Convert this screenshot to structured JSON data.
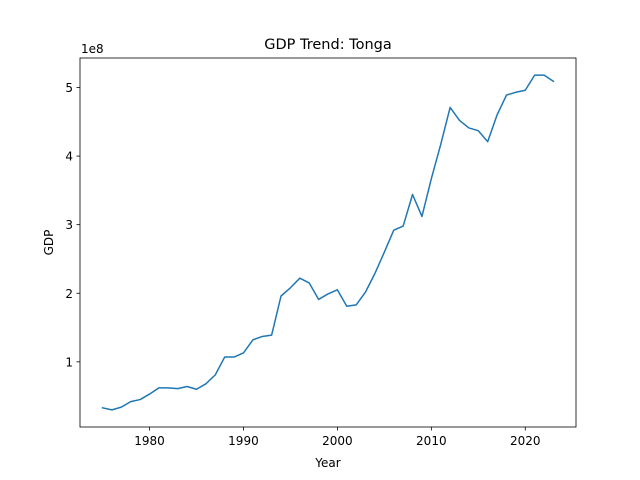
{
  "chart_data": {
    "type": "line",
    "title": "GDP Trend: Tonga",
    "xlabel": "Year",
    "ylabel": "GDP",
    "y_offset_label": "1e8",
    "y_scale_factor": 100000000,
    "xlim": [
      1972.6,
      2025.4
    ],
    "ylim": [
      5000000,
      543000000
    ],
    "x_ticks": [
      1980,
      1990,
      2000,
      2010,
      2020
    ],
    "y_ticks": [
      1,
      2,
      3,
      4,
      5
    ],
    "grid": false,
    "x": [
      1975,
      1976,
      1977,
      1978,
      1979,
      1980,
      1981,
      1982,
      1983,
      1984,
      1985,
      1986,
      1987,
      1988,
      1989,
      1990,
      1991,
      1992,
      1993,
      1994,
      1995,
      1996,
      1997,
      1998,
      1999,
      2000,
      2001,
      2002,
      2003,
      2004,
      2005,
      2006,
      2007,
      2008,
      2009,
      2010,
      2011,
      2012,
      2013,
      2014,
      2015,
      2016,
      2017,
      2018,
      2019,
      2020,
      2021,
      2022,
      2023
    ],
    "series": [
      {
        "color": "#1f77b4",
        "values": [
          33000000,
          30000000,
          34000000,
          42000000,
          45000000,
          53000000,
          62000000,
          62000000,
          61000000,
          64000000,
          60000000,
          68000000,
          81000000,
          107000000,
          107000000,
          113000000,
          132000000,
          137000000,
          139000000,
          196000000,
          208000000,
          222000000,
          215000000,
          191000000,
          199000000,
          205000000,
          181000000,
          183000000,
          202000000,
          229000000,
          260000000,
          292000000,
          298000000,
          344000000,
          312000000,
          367000000,
          417000000,
          471000000,
          452000000,
          441000000,
          437000000,
          421000000,
          460000000,
          489000000,
          493000000,
          496000000,
          518000000,
          518000000,
          509000000
        ]
      }
    ]
  }
}
